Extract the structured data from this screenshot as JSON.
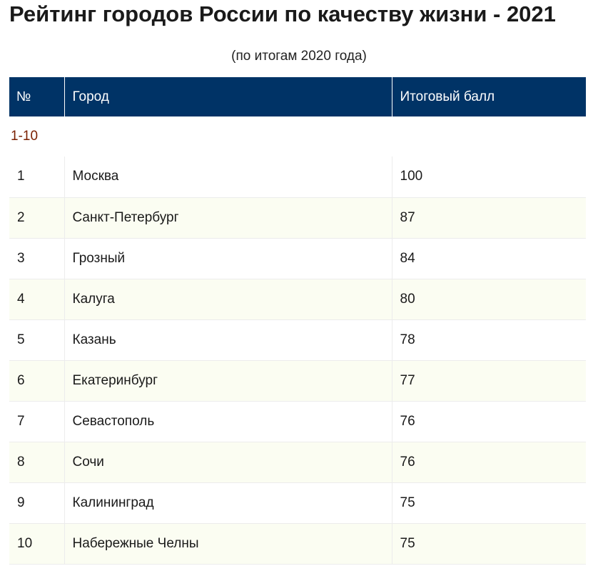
{
  "title": "Рейтинг городов России по качеству жизни - 2021",
  "subtitle": "(по итогам 2020 года)",
  "table": {
    "headers": [
      "№",
      "Город",
      "Итоговый балл"
    ],
    "group_label": "1-10",
    "rows": [
      {
        "rank": "1",
        "city": "Москва",
        "score": "100"
      },
      {
        "rank": "2",
        "city": "Санкт-Петербург",
        "score": "87"
      },
      {
        "rank": "3",
        "city": "Грозный",
        "score": "84"
      },
      {
        "rank": "4",
        "city": "Калуга",
        "score": "80"
      },
      {
        "rank": "5",
        "city": "Казань",
        "score": "78"
      },
      {
        "rank": "6",
        "city": "Екатеринбург",
        "score": "77"
      },
      {
        "rank": "7",
        "city": "Севастополь",
        "score": "76"
      },
      {
        "rank": "8",
        "city": "Сочи",
        "score": "76"
      },
      {
        "rank": "9",
        "city": "Калининград",
        "score": "75"
      },
      {
        "rank": "10",
        "city": "Набережные Челны",
        "score": "75"
      }
    ]
  },
  "colors": {
    "header_bg": "#003366",
    "group_label": "#7a1f00",
    "row_alt_bg": "#fbfdf2"
  }
}
